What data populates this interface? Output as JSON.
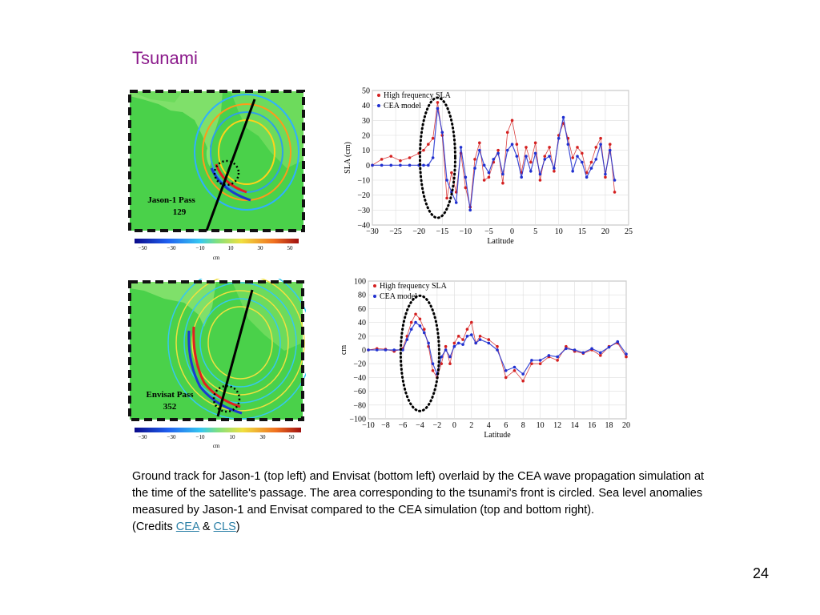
{
  "page": {
    "title": "Tsunami",
    "page_number": "24"
  },
  "maps": [
    {
      "label_line1": "Jason-1 Pass",
      "label_line2": "129",
      "colorbar_ticks": [
        "−50",
        "−30",
        "−10",
        "10",
        "30",
        "50"
      ],
      "colorbar_unit": "cm"
    },
    {
      "label_line1": "Envisat Pass",
      "label_line2": "352",
      "colorbar_ticks": [
        "−30",
        "−30",
        "−10",
        "10",
        "30",
        "50"
      ],
      "colorbar_unit": "cm"
    }
  ],
  "caption": {
    "text": "Ground track for Jason-1 (top left) and Envisat (bottom left) overlaid by the CEA wave propagation simulation at the time of the satellite's passage. The area corresponding to the tsunami's front is circled. Sea level anomalies measured by Jason-1 and Envisat compared to the CEA simulation (top and bottom right).",
    "credits_prefix": "(Credits ",
    "credits_link1": "CEA",
    "credits_amp": " & ",
    "credits_link2": "CLS",
    "credits_suffix": ")"
  },
  "chart_data": [
    {
      "type": "line",
      "xlabel": "Latitude",
      "ylabel": "SLA (cm)",
      "xlim": [
        -30,
        25
      ],
      "ylim": [
        -40,
        50
      ],
      "xticks": [
        -30,
        -25,
        -20,
        -15,
        -10,
        -5,
        0,
        5,
        10,
        15,
        20,
        25
      ],
      "yticks": [
        -40,
        -30,
        -20,
        -10,
        0,
        10,
        20,
        30,
        40,
        50
      ],
      "legend_position": "top-left",
      "colors": {
        "series1": "#d42020",
        "series2": "#2030d0"
      },
      "series": [
        {
          "name": "High frequency SLA",
          "x": [
            -30,
            -28,
            -26,
            -24,
            -22,
            -20,
            -19,
            -18,
            -17,
            -16,
            -15,
            -14,
            -13,
            -12,
            -11,
            -10,
            -9,
            -8,
            -7,
            -6,
            -5,
            -4,
            -3,
            -2,
            -1,
            0,
            1,
            2,
            3,
            4,
            5,
            6,
            7,
            8,
            9,
            10,
            11,
            12,
            13,
            14,
            15,
            16,
            17,
            18,
            19,
            20,
            21,
            22
          ],
          "y": [
            0,
            4,
            6,
            3,
            5,
            8,
            10,
            14,
            18,
            42,
            20,
            -22,
            -5,
            -18,
            8,
            -15,
            -28,
            4,
            15,
            -10,
            -8,
            2,
            10,
            -12,
            22,
            30,
            14,
            -5,
            12,
            2,
            15,
            -10,
            6,
            12,
            -4,
            20,
            28,
            18,
            5,
            12,
            8,
            -5,
            2,
            12,
            18,
            -8,
            14,
            -18
          ]
        },
        {
          "name": "CEA model",
          "x": [
            -30,
            -28,
            -26,
            -24,
            -22,
            -20,
            -19,
            -18,
            -17,
            -16,
            -15,
            -14,
            -13,
            -12,
            -11,
            -10,
            -9,
            -8,
            -7,
            -6,
            -5,
            -4,
            -3,
            -2,
            -1,
            0,
            1,
            2,
            3,
            4,
            5,
            6,
            7,
            8,
            9,
            10,
            11,
            12,
            13,
            14,
            15,
            16,
            17,
            18,
            19,
            20,
            21,
            22
          ],
          "y": [
            0,
            0,
            0,
            0,
            0,
            0,
            0,
            0,
            5,
            38,
            22,
            -10,
            -18,
            -25,
            12,
            -8,
            -30,
            -2,
            10,
            0,
            -5,
            4,
            8,
            -6,
            10,
            14,
            6,
            -8,
            6,
            -4,
            8,
            -6,
            4,
            6,
            -2,
            18,
            32,
            14,
            -4,
            6,
            2,
            -8,
            -2,
            4,
            14,
            -6,
            10,
            -10
          ]
        }
      ]
    },
    {
      "type": "line",
      "xlabel": "Latitude",
      "ylabel": "cm",
      "xlim": [
        -10,
        20
      ],
      "ylim": [
        -100,
        100
      ],
      "xticks": [
        -10,
        -8,
        -6,
        -4,
        -2,
        0,
        2,
        4,
        6,
        8,
        10,
        12,
        14,
        16,
        18,
        20
      ],
      "yticks": [
        -100,
        -80,
        -60,
        -40,
        -20,
        0,
        20,
        40,
        60,
        80,
        100
      ],
      "legend_position": "top-left",
      "colors": {
        "series1": "#d42020",
        "series2": "#2030d0"
      },
      "series": [
        {
          "name": "High frequency SLA",
          "x": [
            -10,
            -9,
            -8,
            -7,
            -6,
            -5.5,
            -5,
            -4.5,
            -4,
            -3.5,
            -3,
            -2.5,
            -2,
            -1.5,
            -1,
            -0.5,
            0,
            0.5,
            1,
            1.5,
            2,
            2.5,
            3,
            4,
            5,
            6,
            7,
            8,
            9,
            10,
            11,
            12,
            13,
            14,
            15,
            16,
            17,
            18,
            19,
            20
          ],
          "y": [
            0,
            2,
            1,
            -2,
            2,
            20,
            40,
            52,
            45,
            30,
            5,
            -30,
            -40,
            -20,
            5,
            -20,
            10,
            20,
            15,
            30,
            40,
            10,
            20,
            15,
            5,
            -40,
            -30,
            -45,
            -20,
            -20,
            -10,
            -15,
            5,
            -2,
            -5,
            0,
            -8,
            5,
            10,
            -10
          ]
        },
        {
          "name": "CEA model",
          "x": [
            -10,
            -9,
            -8,
            -7,
            -6,
            -5.5,
            -5,
            -4.5,
            -4,
            -3.5,
            -3,
            -2.5,
            -2,
            -1.5,
            -1,
            -0.5,
            0,
            0.5,
            1,
            1.5,
            2,
            2.5,
            3,
            4,
            5,
            6,
            7,
            8,
            9,
            10,
            11,
            12,
            13,
            14,
            15,
            16,
            17,
            18,
            19,
            20
          ],
          "y": [
            0,
            0,
            0,
            0,
            0,
            15,
            30,
            40,
            35,
            25,
            10,
            -20,
            -35,
            -10,
            0,
            -10,
            5,
            10,
            8,
            20,
            22,
            10,
            15,
            10,
            0,
            -30,
            -25,
            -35,
            -15,
            -15,
            -8,
            -10,
            2,
            0,
            -4,
            2,
            -4,
            4,
            12,
            -6
          ]
        }
      ]
    }
  ]
}
